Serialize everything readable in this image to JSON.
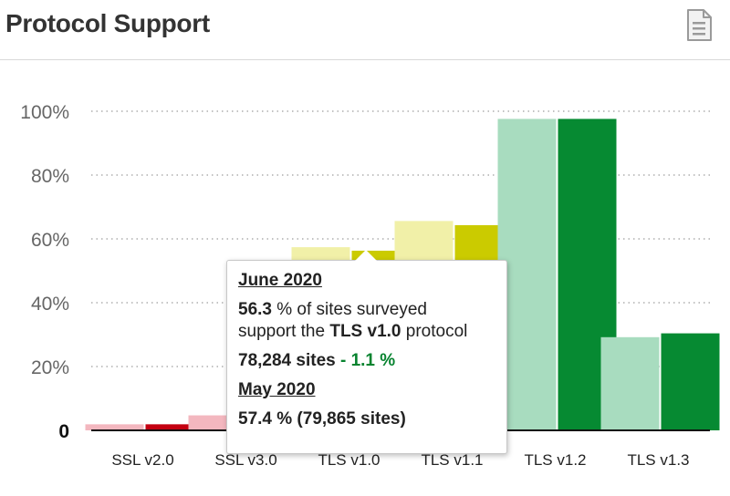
{
  "header": {
    "title": "Protocol Support",
    "icon": "document-icon"
  },
  "colors": {
    "grid": "#9e9e9e",
    "axis": "#111111",
    "tick": "#666666"
  },
  "chart_data": {
    "type": "bar",
    "title": "Protocol Support",
    "xlabel": "",
    "ylabel": "",
    "ylim": [
      0,
      100
    ],
    "yticks": [
      {
        "value": 0,
        "label": "0"
      },
      {
        "value": 20,
        "label": "20%"
      },
      {
        "value": 40,
        "label": "40%"
      },
      {
        "value": 60,
        "label": "60%"
      },
      {
        "value": 80,
        "label": "80%"
      },
      {
        "value": 100,
        "label": "100%"
      }
    ],
    "grid": true,
    "categories": [
      "SSL v2.0",
      "SSL v3.0",
      "TLS v1.0",
      "TLS v1.1",
      "TLS v1.2",
      "TLS v1.3"
    ],
    "series": [
      {
        "values": [
          1.9,
          4.7,
          57.4,
          65.6,
          97.6,
          29.2
        ],
        "colors": [
          "#f3b7bf",
          "#f3b7bf",
          "#f1f0a8",
          "#f1f0a8",
          "#a8dcbf",
          "#a8dcbf"
        ]
      },
      {
        "values": [
          1.9,
          4.7,
          56.3,
          64.3,
          97.6,
          30.4
        ],
        "colors": [
          "#c40010",
          "#c40010",
          "#cbcb00",
          "#cbcb00",
          "#068a32",
          "#068a32"
        ]
      }
    ]
  },
  "tooltip": {
    "current_date": "June 2020",
    "current_value": "56.3",
    "line1_rest": " % of sites surveyed",
    "line2_prefix": "support the ",
    "protocol": "TLS v1.0",
    "line2_suffix": " protocol",
    "sites": "78,284 sites",
    "change": " - 1.1 %",
    "previous_date": "May 2020",
    "previous_text": "57.4 % (79,865 sites)"
  }
}
